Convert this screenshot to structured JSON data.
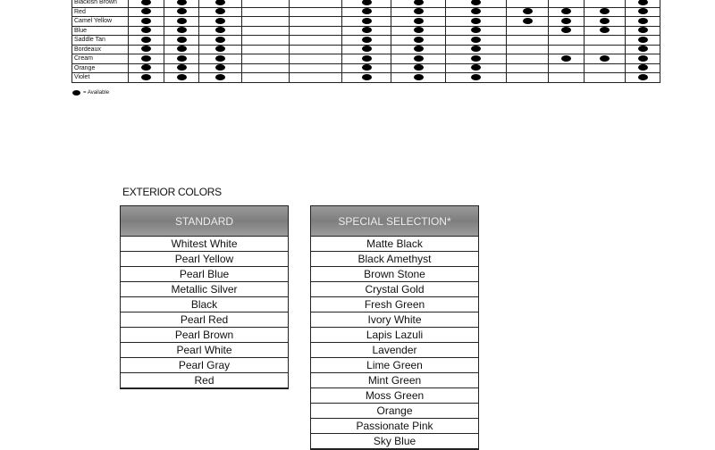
{
  "availability_table": {
    "rows": [
      {
        "label": "Blackish Brown",
        "cells": [
          1,
          1,
          1,
          0,
          0,
          1,
          1,
          1,
          0,
          0,
          0,
          1
        ]
      },
      {
        "label": "Red",
        "cells": [
          1,
          1,
          1,
          0,
          0,
          1,
          1,
          1,
          1,
          1,
          1,
          1
        ]
      },
      {
        "label": "Camel Yellow",
        "cells": [
          1,
          1,
          1,
          0,
          0,
          1,
          1,
          1,
          1,
          1,
          1,
          1
        ]
      },
      {
        "label": "Blue",
        "cells": [
          1,
          1,
          1,
          0,
          0,
          1,
          1,
          1,
          0,
          1,
          1,
          1
        ]
      },
      {
        "label": "Saddle Tan",
        "cells": [
          1,
          1,
          1,
          0,
          0,
          1,
          1,
          1,
          0,
          0,
          0,
          1
        ]
      },
      {
        "label": "Bordeaux",
        "cells": [
          1,
          1,
          1,
          0,
          0,
          1,
          1,
          1,
          0,
          0,
          0,
          1
        ]
      },
      {
        "label": "Cream",
        "cells": [
          1,
          1,
          1,
          0,
          0,
          1,
          1,
          1,
          0,
          1,
          1,
          1
        ]
      },
      {
        "label": "Orange",
        "cells": [
          1,
          1,
          1,
          0,
          0,
          1,
          1,
          1,
          0,
          0,
          0,
          1
        ]
      },
      {
        "label": "Violet",
        "cells": [
          1,
          1,
          1,
          0,
          0,
          1,
          1,
          1,
          0,
          0,
          0,
          1
        ]
      }
    ],
    "legend": "= Available"
  },
  "exterior": {
    "title": "EXTERIOR COLORS",
    "standard": {
      "header": "STANDARD",
      "items": [
        "Whitest White",
        "Pearl Yellow",
        "Pearl Blue",
        "Metallic Silver",
        "Black",
        "Pearl Red",
        "Pearl Brown",
        "Pearl White",
        "Pearl Gray",
        "Red"
      ]
    },
    "special": {
      "header": "SPECIAL SELECTION*",
      "items": [
        "Matte Black",
        "Black Amethyst",
        "Brown Stone",
        "Crystal Gold",
        "Fresh Green",
        "Ivory White",
        "Lapis Lazuli",
        "Lavender",
        "Lime Green",
        "Mint Green",
        "Moss Green",
        "Orange",
        "Passionate Pink",
        "Sky Blue"
      ]
    }
  }
}
